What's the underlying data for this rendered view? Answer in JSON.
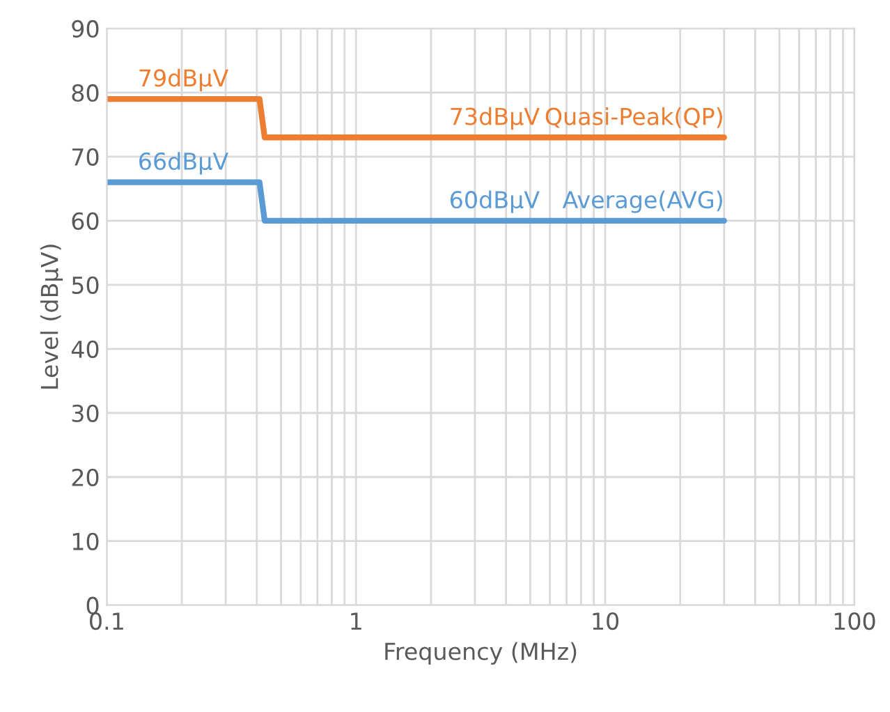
{
  "chart_data": {
    "type": "line",
    "xlabel": "Frequency (MHz)",
    "ylabel": "Level (dBµV)",
    "log": "x",
    "xlim": [
      0.1,
      100
    ],
    "xticks": [
      0.1,
      1,
      10,
      100
    ],
    "ylim": [
      0,
      90
    ],
    "yticks": [
      0,
      10,
      20,
      30,
      40,
      50,
      60,
      70,
      80,
      90
    ],
    "grid": true,
    "legend": false,
    "marker": "none",
    "line_style": "solid",
    "series": [
      {
        "name": "Quasi-Peak(QP)",
        "color": "#ed7d31",
        "x": [
          0.1,
          0.41,
          0.43,
          30
        ],
        "values": [
          79,
          79,
          73,
          73
        ]
      },
      {
        "name": "Average(AVG)",
        "color": "#5b9bd5",
        "x": [
          0.1,
          0.41,
          0.43,
          30
        ],
        "values": [
          66,
          66,
          60,
          60
        ]
      }
    ],
    "annotations": [
      {
        "text": "79dBµV",
        "y": 79
      },
      {
        "text": "73dBµV",
        "y": 73
      },
      {
        "text": "66dBµV",
        "y": 66
      },
      {
        "text": "60dBµV",
        "y": 60
      }
    ]
  }
}
